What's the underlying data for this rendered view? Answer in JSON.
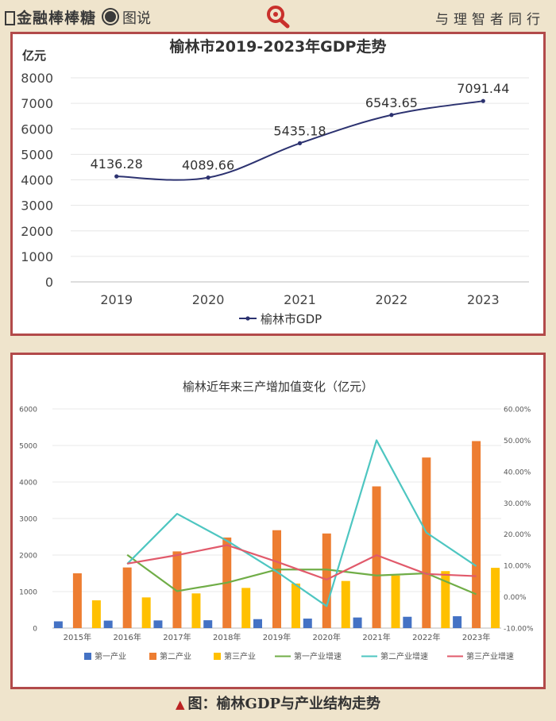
{
  "header": {
    "logo_text": "金融棒棒糖",
    "section_label": "图说",
    "slogan": "与理智者同行"
  },
  "footer": {
    "marker": "▲",
    "caption": "图：榆林GDP与产业结构走势"
  },
  "chart_data": [
    {
      "type": "line",
      "title": "榆林市2019-2023年GDP走势",
      "ylabel": "亿元",
      "ylim": [
        0,
        8000
      ],
      "yticks": [
        0,
        1000,
        2000,
        3000,
        4000,
        5000,
        6000,
        7000,
        8000
      ],
      "categories": [
        "2019",
        "2020",
        "2021",
        "2022",
        "2023"
      ],
      "series": [
        {
          "name": "榆林市GDP",
          "values": [
            4136.28,
            4089.66,
            5435.18,
            6543.65,
            7091.44
          ],
          "labels": [
            "4136.28",
            "4089.66",
            "5435.18",
            "6543.65",
            "7091.44"
          ],
          "color": "#2c3270"
        }
      ],
      "legend": "bottom"
    },
    {
      "type": "bar",
      "title": "榆林近年来三产增加值变化（亿元）",
      "categories": [
        "2015年",
        "2016年",
        "2017年",
        "2018年",
        "2019年",
        "2020年",
        "2021年",
        "2022年",
        "2023年"
      ],
      "ylim": [
        0,
        6000
      ],
      "yticks": [
        "0",
        "1000",
        "2000",
        "3000",
        "4000",
        "5000",
        "6000"
      ],
      "y2lim": [
        -10,
        60
      ],
      "y2ticks": [
        "-10.00%",
        "0.00%",
        "10.00%",
        "20.00%",
        "30.00%",
        "40.00%",
        "50.00%",
        "60.00%"
      ],
      "series": [
        {
          "name": "第一产业",
          "kind": "bar",
          "color": "#4472c4",
          "values": [
            185,
            205,
            210,
            215,
            245,
            260,
            290,
            310,
            325
          ]
        },
        {
          "name": "第二产业",
          "kind": "bar",
          "color": "#ed7d31",
          "values": [
            1500,
            1660,
            2100,
            2480,
            2680,
            2590,
            3880,
            4670,
            5120
          ]
        },
        {
          "name": "第三产业",
          "kind": "bar",
          "color": "#ffc000",
          "values": [
            760,
            840,
            950,
            1100,
            1220,
            1290,
            1440,
            1560,
            1650
          ]
        },
        {
          "name": "第一产业增速",
          "kind": "line",
          "axis": "right",
          "color": "#70ad47",
          "values": [
            null,
            13.4,
            1.8,
            4.5,
            8.7,
            8.7,
            6.8,
            7.5,
            0.8
          ]
        },
        {
          "name": "第二产业增速",
          "kind": "line",
          "axis": "right",
          "color": "#4ec6c1",
          "values": [
            null,
            10.5,
            26.5,
            17.9,
            8.0,
            -3.0,
            50.0,
            20.5,
            9.8
          ]
        },
        {
          "name": "第三产业增速",
          "kind": "line",
          "axis": "right",
          "color": "#e15a6b",
          "values": [
            null,
            10.6,
            13.3,
            16.5,
            11.2,
            5.5,
            13.3,
            7.3,
            6.6
          ]
        }
      ],
      "legend": "bottom"
    }
  ]
}
